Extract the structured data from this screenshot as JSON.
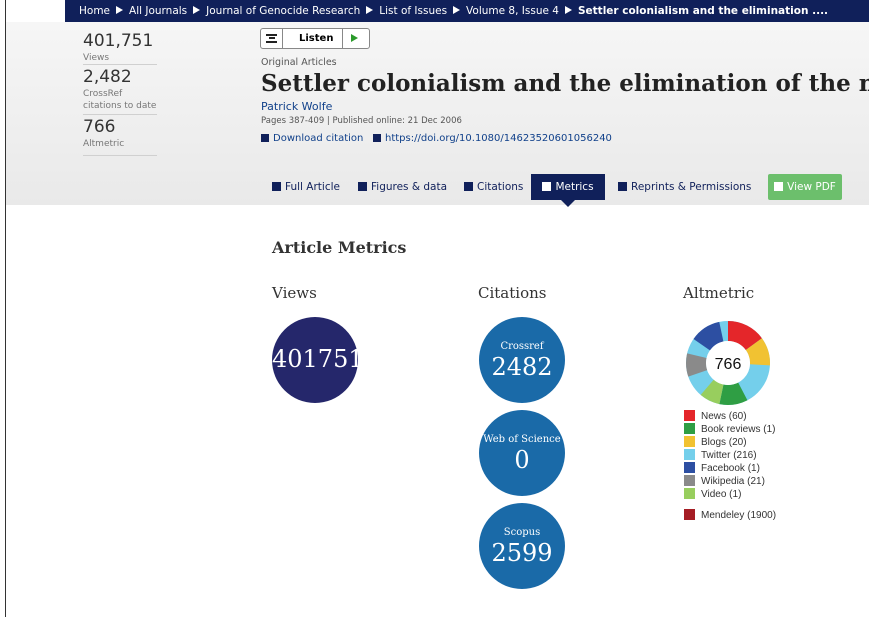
{
  "breadcrumb": [
    "Home",
    "All Journals",
    "Journal of Genocide Research",
    "List of Issues",
    "Volume 8, Issue 4",
    "Settler colonialism and the elimination ...."
  ],
  "sidebar": {
    "views": "401,751",
    "views_label": "Views",
    "crossref": "2,482",
    "crossref_label_1": "CrossRef",
    "crossref_label_2": "citations to date",
    "altmetric": "766",
    "altmetric_label": "Altmetric"
  },
  "listen": "Listen",
  "article": {
    "section": "Original Articles",
    "title": "Settler colonialism and the elimination of the native",
    "author": "Patrick Wolfe",
    "pages": "Pages 387-409 | Published online: 21 Dec 2006",
    "download": "Download citation",
    "doi": "https://doi.org/10.1080/14623520601056240"
  },
  "tabs": [
    "Full Article",
    "Figures & data",
    "Citations",
    "Metrics",
    "Reprints & Permissions",
    "View PDF"
  ],
  "metrics": {
    "heading": "Article Metrics",
    "views_heading": "Views",
    "views": "401751",
    "citations_heading": "Citations",
    "citations": [
      {
        "label": "Crossref",
        "value": "2482"
      },
      {
        "label": "Web of Science",
        "value": "0"
      },
      {
        "label": "Scopus",
        "value": "2599"
      }
    ],
    "altmetric_heading": "Altmetric",
    "altmetric_score": "766",
    "legend": [
      {
        "label": "News (60)",
        "color": "#e4262a"
      },
      {
        "label": "Book reviews (1)",
        "color": "#2f9e44"
      },
      {
        "label": "Blogs (20)",
        "color": "#f1c232"
      },
      {
        "label": "Twitter (216)",
        "color": "#74cfeb"
      },
      {
        "label": "Facebook (1)",
        "color": "#2d4fa2"
      },
      {
        "label": "Wikipedia (21)",
        "color": "#8a8a8a"
      },
      {
        "label": "Video (1)",
        "color": "#98ce5e"
      },
      {
        "label": "Mendeley (1900)",
        "color": "#a51d24"
      }
    ]
  }
}
